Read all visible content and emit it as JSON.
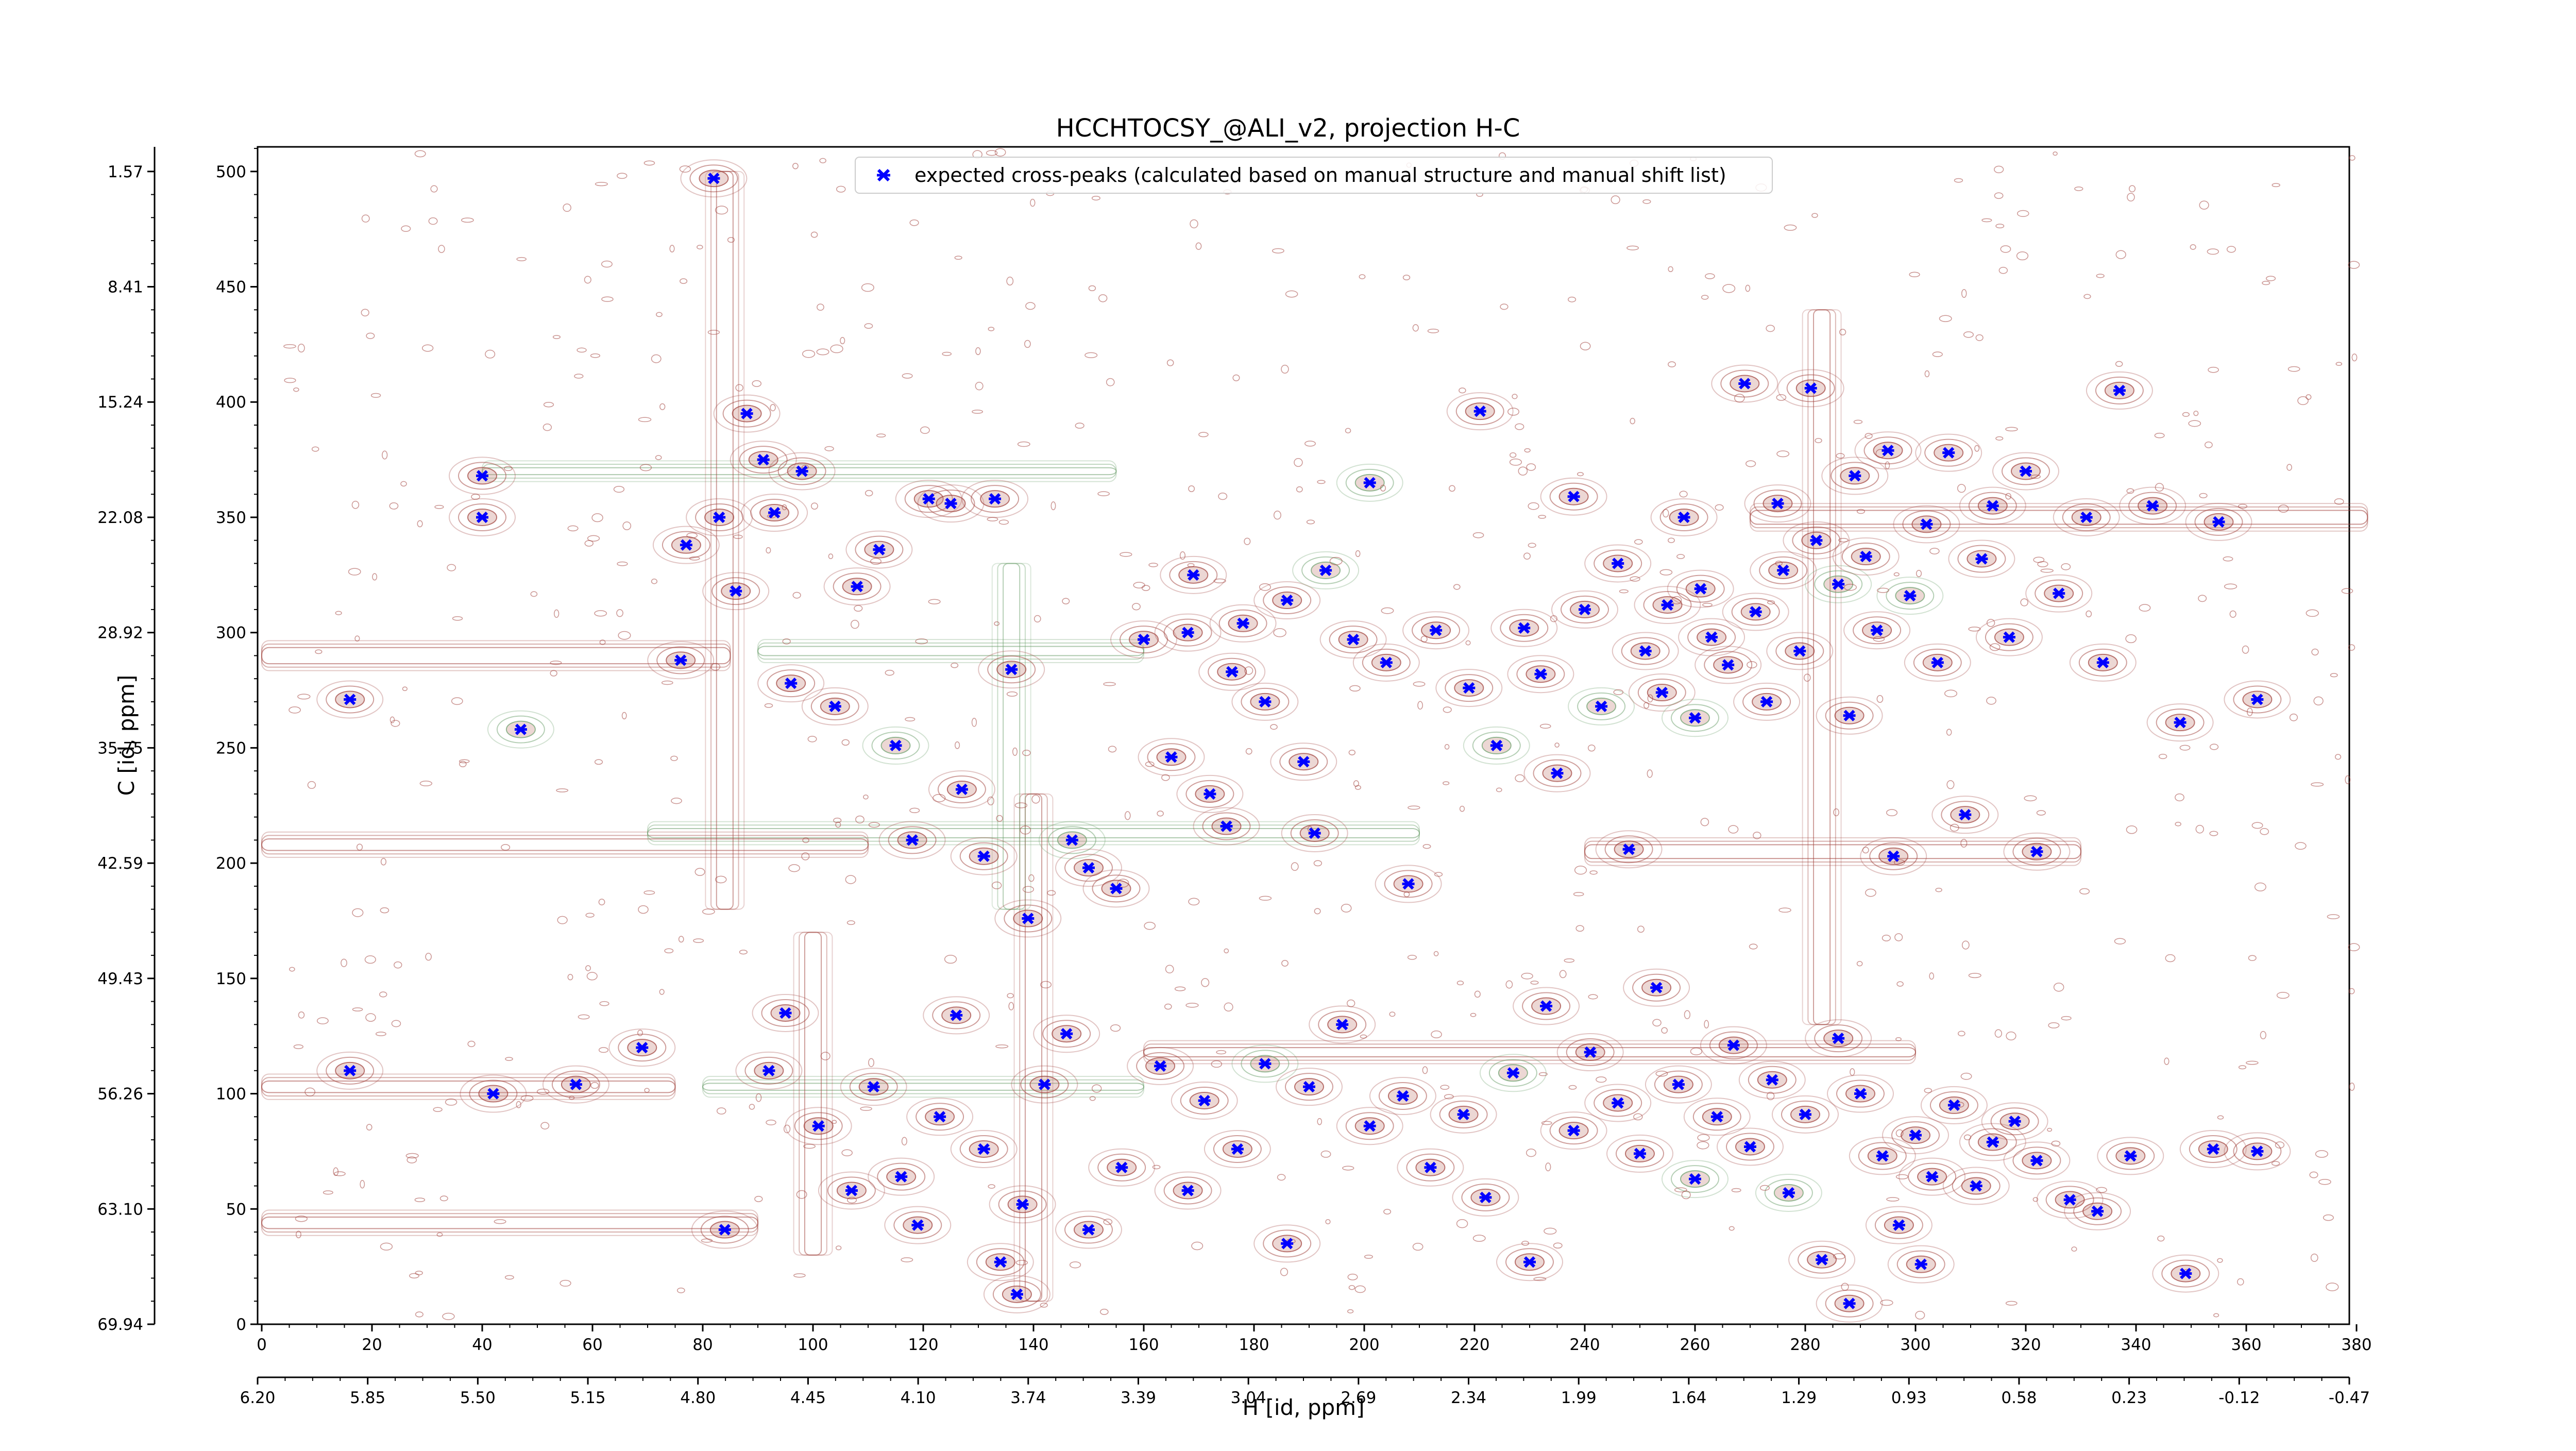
{
  "chart_data": {
    "type": "scatter",
    "title": "HCCHTOCSY_@ALI_v2, projection H-C",
    "xlabel": "H [id, ppm]",
    "ylabel": "C [id, ppm]",
    "x_index_range": [
      0,
      382
    ],
    "y_index_range": [
      0,
      512
    ],
    "x_index_ticks": [
      "0",
      "20",
      "40",
      "60",
      "80",
      "100",
      "120",
      "140",
      "160",
      "180",
      "200",
      "220",
      "240",
      "260",
      "280",
      "300",
      "320",
      "340",
      "360",
      "380"
    ],
    "x_ppm_ticks": [
      "6.20",
      "5.85",
      "5.50",
      "5.15",
      "4.80",
      "4.45",
      "4.10",
      "3.74",
      "3.39",
      "3.04",
      "2.69",
      "2.34",
      "1.99",
      "1.64",
      "1.29",
      "0.93",
      "0.58",
      "0.23",
      "-0.12",
      "-0.47"
    ],
    "y_index_ticks": [
      "0",
      "50",
      "100",
      "150",
      "200",
      "250",
      "300",
      "350",
      "400",
      "450",
      "500"
    ],
    "y_ppm_ticks": [
      "69.94",
      "63.10",
      "56.26",
      "49.43",
      "42.59",
      "35.75",
      "28.92",
      "22.08",
      "15.24",
      "8.41",
      "1.57"
    ],
    "grid": false,
    "legend_position": "top-center",
    "series": [
      {
        "name": "expected cross-peaks (calculated based on manual structure and manual shift list)",
        "marker": "x",
        "color": "#0000ff",
        "points": [
          [
            16,
            271
          ],
          [
            40,
            350
          ],
          [
            40,
            368
          ],
          [
            47,
            258
          ],
          [
            76,
            288
          ],
          [
            77,
            338
          ],
          [
            82,
            497
          ],
          [
            83,
            350
          ],
          [
            86,
            318
          ],
          [
            88,
            395
          ],
          [
            91,
            375
          ],
          [
            93,
            352
          ],
          [
            96,
            278
          ],
          [
            98,
            370
          ],
          [
            104,
            268
          ],
          [
            108,
            320
          ],
          [
            112,
            336
          ],
          [
            115,
            251
          ],
          [
            118,
            210
          ],
          [
            121,
            358
          ],
          [
            125,
            356
          ],
          [
            127,
            232
          ],
          [
            131,
            203
          ],
          [
            133,
            358
          ],
          [
            136,
            284
          ],
          [
            139,
            176
          ],
          [
            146,
            126
          ],
          [
            147,
            210
          ],
          [
            150,
            198
          ],
          [
            155,
            189
          ],
          [
            160,
            297
          ],
          [
            165,
            246
          ],
          [
            168,
            300
          ],
          [
            169,
            325
          ],
          [
            172,
            230
          ],
          [
            175,
            216
          ],
          [
            176,
            283
          ],
          [
            178,
            304
          ],
          [
            182,
            270
          ],
          [
            186,
            314
          ],
          [
            189,
            244
          ],
          [
            191,
            213
          ],
          [
            193,
            327
          ],
          [
            198,
            297
          ],
          [
            201,
            365
          ],
          [
            204,
            287
          ],
          [
            208,
            191
          ],
          [
            213,
            301
          ],
          [
            219,
            276
          ],
          [
            221,
            396
          ],
          [
            224,
            251
          ],
          [
            229,
            302
          ],
          [
            232,
            282
          ],
          [
            235,
            239
          ],
          [
            238,
            359
          ],
          [
            240,
            310
          ],
          [
            243,
            268
          ],
          [
            246,
            330
          ],
          [
            248,
            206
          ],
          [
            251,
            292
          ],
          [
            254,
            274
          ],
          [
            255,
            312
          ],
          [
            258,
            350
          ],
          [
            260,
            263
          ],
          [
            261,
            319
          ],
          [
            263,
            298
          ],
          [
            266,
            286
          ],
          [
            269,
            408
          ],
          [
            271,
            309
          ],
          [
            273,
            270
          ],
          [
            275,
            356
          ],
          [
            276,
            327
          ],
          [
            279,
            292
          ],
          [
            281,
            406
          ],
          [
            282,
            340
          ],
          [
            286,
            321
          ],
          [
            288,
            264
          ],
          [
            289,
            368
          ],
          [
            291,
            333
          ],
          [
            293,
            301
          ],
          [
            295,
            379
          ],
          [
            296,
            203
          ],
          [
            299,
            316
          ],
          [
            302,
            347
          ],
          [
            304,
            287
          ],
          [
            306,
            378
          ],
          [
            309,
            221
          ],
          [
            312,
            332
          ],
          [
            314,
            355
          ],
          [
            317,
            298
          ],
          [
            320,
            370
          ],
          [
            322,
            205
          ],
          [
            326,
            317
          ],
          [
            331,
            350
          ],
          [
            334,
            287
          ],
          [
            337,
            405
          ],
          [
            343,
            355
          ],
          [
            348,
            261
          ],
          [
            355,
            348
          ],
          [
            362,
            271
          ],
          [
            16,
            110
          ],
          [
            42,
            100
          ],
          [
            57,
            104
          ],
          [
            69,
            120
          ],
          [
            84,
            41
          ],
          [
            92,
            110
          ],
          [
            95,
            135
          ],
          [
            101,
            86
          ],
          [
            107,
            58
          ],
          [
            111,
            103
          ],
          [
            116,
            64
          ],
          [
            119,
            43
          ],
          [
            123,
            90
          ],
          [
            126,
            134
          ],
          [
            131,
            76
          ],
          [
            134,
            27
          ],
          [
            138,
            52
          ],
          [
            142,
            104
          ],
          [
            150,
            41
          ],
          [
            156,
            68
          ],
          [
            163,
            112
          ],
          [
            168,
            58
          ],
          [
            171,
            97
          ],
          [
            177,
            76
          ],
          [
            182,
            113
          ],
          [
            186,
            35
          ],
          [
            190,
            103
          ],
          [
            196,
            130
          ],
          [
            201,
            86
          ],
          [
            207,
            99
          ],
          [
            212,
            68
          ],
          [
            218,
            91
          ],
          [
            222,
            55
          ],
          [
            227,
            109
          ],
          [
            230,
            27
          ],
          [
            233,
            138
          ],
          [
            238,
            84
          ],
          [
            241,
            118
          ],
          [
            246,
            96
          ],
          [
            250,
            74
          ],
          [
            253,
            146
          ],
          [
            257,
            104
          ],
          [
            260,
            63
          ],
          [
            264,
            90
          ],
          [
            267,
            121
          ],
          [
            270,
            77
          ],
          [
            274,
            106
          ],
          [
            277,
            57
          ],
          [
            280,
            91
          ],
          [
            283,
            28
          ],
          [
            286,
            124
          ],
          [
            290,
            100
          ],
          [
            294,
            73
          ],
          [
            297,
            43
          ],
          [
            300,
            82
          ],
          [
            303,
            64
          ],
          [
            307,
            95
          ],
          [
            311,
            60
          ],
          [
            314,
            79
          ],
          [
            318,
            88
          ],
          [
            322,
            71
          ],
          [
            328,
            54
          ],
          [
            333,
            49
          ],
          [
            339,
            73
          ],
          [
            349,
            22
          ],
          [
            354,
            76
          ],
          [
            362,
            75
          ],
          [
            288,
            9
          ],
          [
            301,
            26
          ],
          [
            137,
            13
          ]
        ]
      }
    ]
  }
}
